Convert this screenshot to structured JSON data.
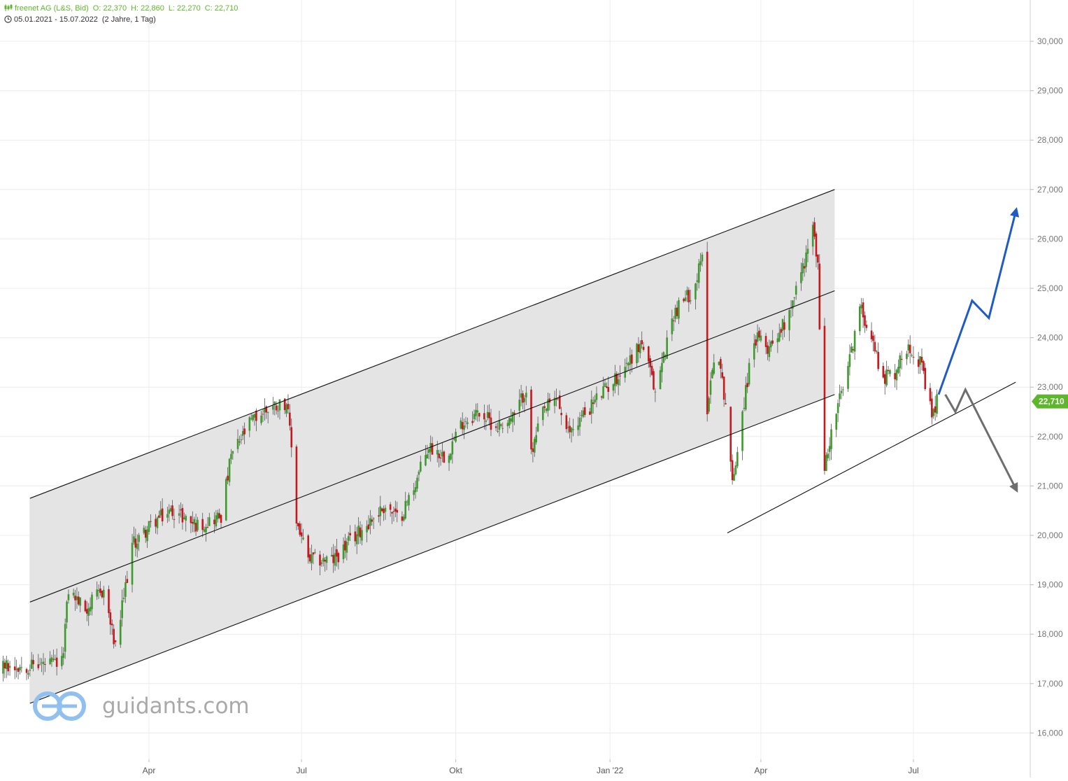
{
  "header": {
    "symbol": "freenet AG (L&S, Bid)",
    "open": "O: 22,370",
    "high": "H: 22,860",
    "low": "L: 22,270",
    "close": "C: 22,710",
    "range": "05.01.2021 - 15.07.2022",
    "period": "(2 Jahre, 1 Tag)"
  },
  "watermark": {
    "text": "guidants.com"
  },
  "colors": {
    "up": "#3d9b2d",
    "down": "#c8171d",
    "channel": "#e4e4e4",
    "grid": "#ececec",
    "bullish": "#1f5bc4",
    "bearish": "#6e6e6e",
    "last": "#5cb82a"
  },
  "chart_data": {
    "type": "candlestick",
    "y_axis": {
      "min": 15400,
      "max": 30800,
      "ticks": [
        "16,000",
        "17,000",
        "18,000",
        "19,000",
        "20,000",
        "21,000",
        "22,000",
        "23,000",
        "24,000",
        "25,000",
        "26,000",
        "27,000",
        "28,000",
        "29,000",
        "30,000"
      ],
      "position": "right"
    },
    "x_axis": {
      "start": "2021-01-05",
      "end": "2022-07-15",
      "ticks": [
        {
          "label": "Apr",
          "date": "2021-04-01"
        },
        {
          "label": "Jul",
          "date": "2021-07-01"
        },
        {
          "label": "Okt",
          "date": "2021-10-01"
        },
        {
          "label": "Jan '22",
          "date": "2022-01-01"
        },
        {
          "label": "Apr",
          "date": "2022-04-01"
        },
        {
          "label": "Jul",
          "date": "2022-07-01"
        }
      ]
    },
    "grid": true,
    "last_price": {
      "label": "22,710",
      "value": 22710
    },
    "price_path": [
      [
        "2021-01-05",
        17350
      ],
      [
        "2021-02-08",
        17400
      ],
      [
        "2021-02-12",
        18900
      ],
      [
        "2021-02-22",
        18500
      ],
      [
        "2021-03-05",
        18900
      ],
      [
        "2021-03-12",
        17700
      ],
      [
        "2021-03-22",
        19800
      ],
      [
        "2021-04-05",
        20300
      ],
      [
        "2021-04-15",
        20500
      ],
      [
        "2021-04-30",
        20200
      ],
      [
        "2021-05-14",
        20400
      ],
      [
        "2021-05-20",
        21600
      ],
      [
        "2021-06-01",
        22300
      ],
      [
        "2021-06-12",
        22600
      ],
      [
        "2021-06-22",
        22700
      ],
      [
        "2021-06-25",
        21800
      ],
      [
        "2021-06-28",
        20300
      ],
      [
        "2021-07-05",
        19500
      ],
      [
        "2021-07-20",
        19500
      ],
      [
        "2021-08-05",
        20100
      ],
      [
        "2021-08-20",
        20600
      ],
      [
        "2021-08-28",
        20300
      ],
      [
        "2021-09-05",
        20900
      ],
      [
        "2021-09-15",
        21800
      ],
      [
        "2021-09-25",
        21600
      ],
      [
        "2021-10-05",
        22300
      ],
      [
        "2021-10-15",
        22500
      ],
      [
        "2021-10-25",
        22200
      ],
      [
        "2021-11-05",
        22400
      ],
      [
        "2021-11-12",
        23000
      ],
      [
        "2021-11-15",
        21600
      ],
      [
        "2021-11-22",
        22500
      ],
      [
        "2021-12-01",
        22800
      ],
      [
        "2021-12-05",
        22000
      ],
      [
        "2021-12-15",
        22400
      ],
      [
        "2021-12-25",
        22800
      ],
      [
        "2022-01-05",
        23200
      ],
      [
        "2022-01-20",
        23900
      ],
      [
        "2022-01-28",
        22900
      ],
      [
        "2022-02-08",
        24500
      ],
      [
        "2022-02-20",
        25000
      ],
      [
        "2022-02-25",
        25600
      ],
      [
        "2022-02-28",
        22600
      ],
      [
        "2022-03-05",
        23900
      ],
      [
        "2022-03-12",
        22500
      ],
      [
        "2022-03-15",
        21000
      ],
      [
        "2022-03-20",
        22300
      ],
      [
        "2022-03-28",
        24000
      ],
      [
        "2022-04-05",
        23800
      ],
      [
        "2022-04-15",
        24300
      ],
      [
        "2022-04-25",
        25300
      ],
      [
        "2022-05-02",
        26200
      ],
      [
        "2022-05-05",
        25500
      ],
      [
        "2022-05-08",
        21200
      ],
      [
        "2022-05-15",
        22400
      ],
      [
        "2022-05-22",
        23200
      ],
      [
        "2022-05-30",
        24600
      ],
      [
        "2022-06-05",
        24200
      ],
      [
        "2022-06-12",
        23200
      ],
      [
        "2022-06-20",
        23300
      ],
      [
        "2022-06-28",
        23900
      ],
      [
        "2022-07-05",
        23500
      ],
      [
        "2022-07-12",
        22400
      ],
      [
        "2022-07-15",
        22710
      ]
    ],
    "trend_lines": [
      {
        "name": "channel-top",
        "from": [
          "2021-01-20",
          20750
        ],
        "to": [
          "2022-05-15",
          27000
        ]
      },
      {
        "name": "channel-middle",
        "from": [
          "2021-01-20",
          18650
        ],
        "to": [
          "2022-05-15",
          24950
        ]
      },
      {
        "name": "channel-bottom",
        "from": [
          "2021-01-20",
          16600
        ],
        "to": [
          "2022-05-15",
          22850
        ]
      },
      {
        "name": "support-line",
        "from": [
          "2022-03-12",
          20050
        ],
        "to": [
          "2022-08-31",
          23100
        ]
      }
    ],
    "scenario_paths": [
      {
        "name": "bullish-scenario",
        "points": [
          [
            "2022-07-16",
            22850
          ],
          [
            "2022-08-05",
            24750
          ],
          [
            "2022-08-15",
            24400
          ],
          [
            "2022-08-31",
            26550
          ]
        ]
      },
      {
        "name": "bearish-scenario",
        "points": [
          [
            "2022-07-20",
            22850
          ],
          [
            "2022-07-26",
            22500
          ],
          [
            "2022-08-01",
            22950
          ],
          [
            "2022-08-31",
            20950
          ]
        ]
      }
    ]
  }
}
